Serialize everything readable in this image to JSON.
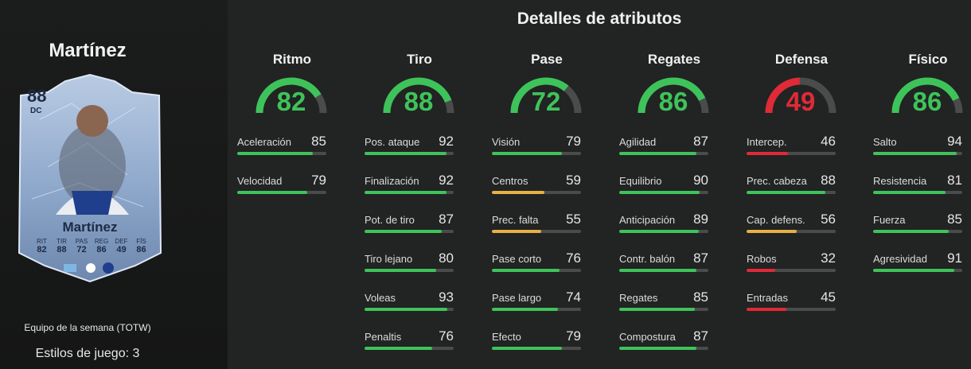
{
  "player": {
    "name": "Martínez",
    "card": {
      "rating": "88",
      "position": "DC",
      "name": "Martínez",
      "stats": [
        {
          "label": "RIT",
          "value": "82"
        },
        {
          "label": "TIR",
          "value": "88"
        },
        {
          "label": "PAS",
          "value": "72"
        },
        {
          "label": "REG",
          "value": "86"
        },
        {
          "label": "DEF",
          "value": "49"
        },
        {
          "label": "FÍS",
          "value": "86"
        }
      ]
    },
    "team_label": "Equipo de la semana (TOTW)",
    "playstyles": "Estilos de juego: 3"
  },
  "title": "Detalles de atributos",
  "colors": {
    "high": "#3ec35a",
    "mid": "#e7b144",
    "low": "#e02a37",
    "track": "#4a4c4c"
  },
  "categories": [
    {
      "name": "Ritmo",
      "value": 82,
      "stats": [
        {
          "label": "Aceleración",
          "value": 85
        },
        {
          "label": "Velocidad",
          "value": 79
        }
      ]
    },
    {
      "name": "Tiro",
      "value": 88,
      "stats": [
        {
          "label": "Pos. ataque",
          "value": 92
        },
        {
          "label": "Finalización",
          "value": 92
        },
        {
          "label": "Pot. de tiro",
          "value": 87
        },
        {
          "label": "Tiro lejano",
          "value": 80
        },
        {
          "label": "Voleas",
          "value": 93
        },
        {
          "label": "Penaltis",
          "value": 76
        }
      ]
    },
    {
      "name": "Pase",
      "value": 72,
      "stats": [
        {
          "label": "Visión",
          "value": 79
        },
        {
          "label": "Centros",
          "value": 59
        },
        {
          "label": "Prec. falta",
          "value": 55
        },
        {
          "label": "Pase corto",
          "value": 76
        },
        {
          "label": "Pase largo",
          "value": 74
        },
        {
          "label": "Efecto",
          "value": 79
        }
      ]
    },
    {
      "name": "Regates",
      "value": 86,
      "stats": [
        {
          "label": "Agilidad",
          "value": 87
        },
        {
          "label": "Equilibrio",
          "value": 90
        },
        {
          "label": "Anticipación",
          "value": 89
        },
        {
          "label": "Contr. balón",
          "value": 87
        },
        {
          "label": "Regates",
          "value": 85
        },
        {
          "label": "Compostura",
          "value": 87
        }
      ]
    },
    {
      "name": "Defensa",
      "value": 49,
      "stats": [
        {
          "label": "Intercep.",
          "value": 46
        },
        {
          "label": "Prec. cabeza",
          "value": 88
        },
        {
          "label": "Cap. defens.",
          "value": 56
        },
        {
          "label": "Robos",
          "value": 32
        },
        {
          "label": "Entradas",
          "value": 45
        }
      ]
    },
    {
      "name": "Físico",
      "value": 86,
      "stats": [
        {
          "label": "Salto",
          "value": 94
        },
        {
          "label": "Resistencia",
          "value": 81
        },
        {
          "label": "Fuerza",
          "value": 85
        },
        {
          "label": "Agresividad",
          "value": 91
        }
      ]
    }
  ]
}
